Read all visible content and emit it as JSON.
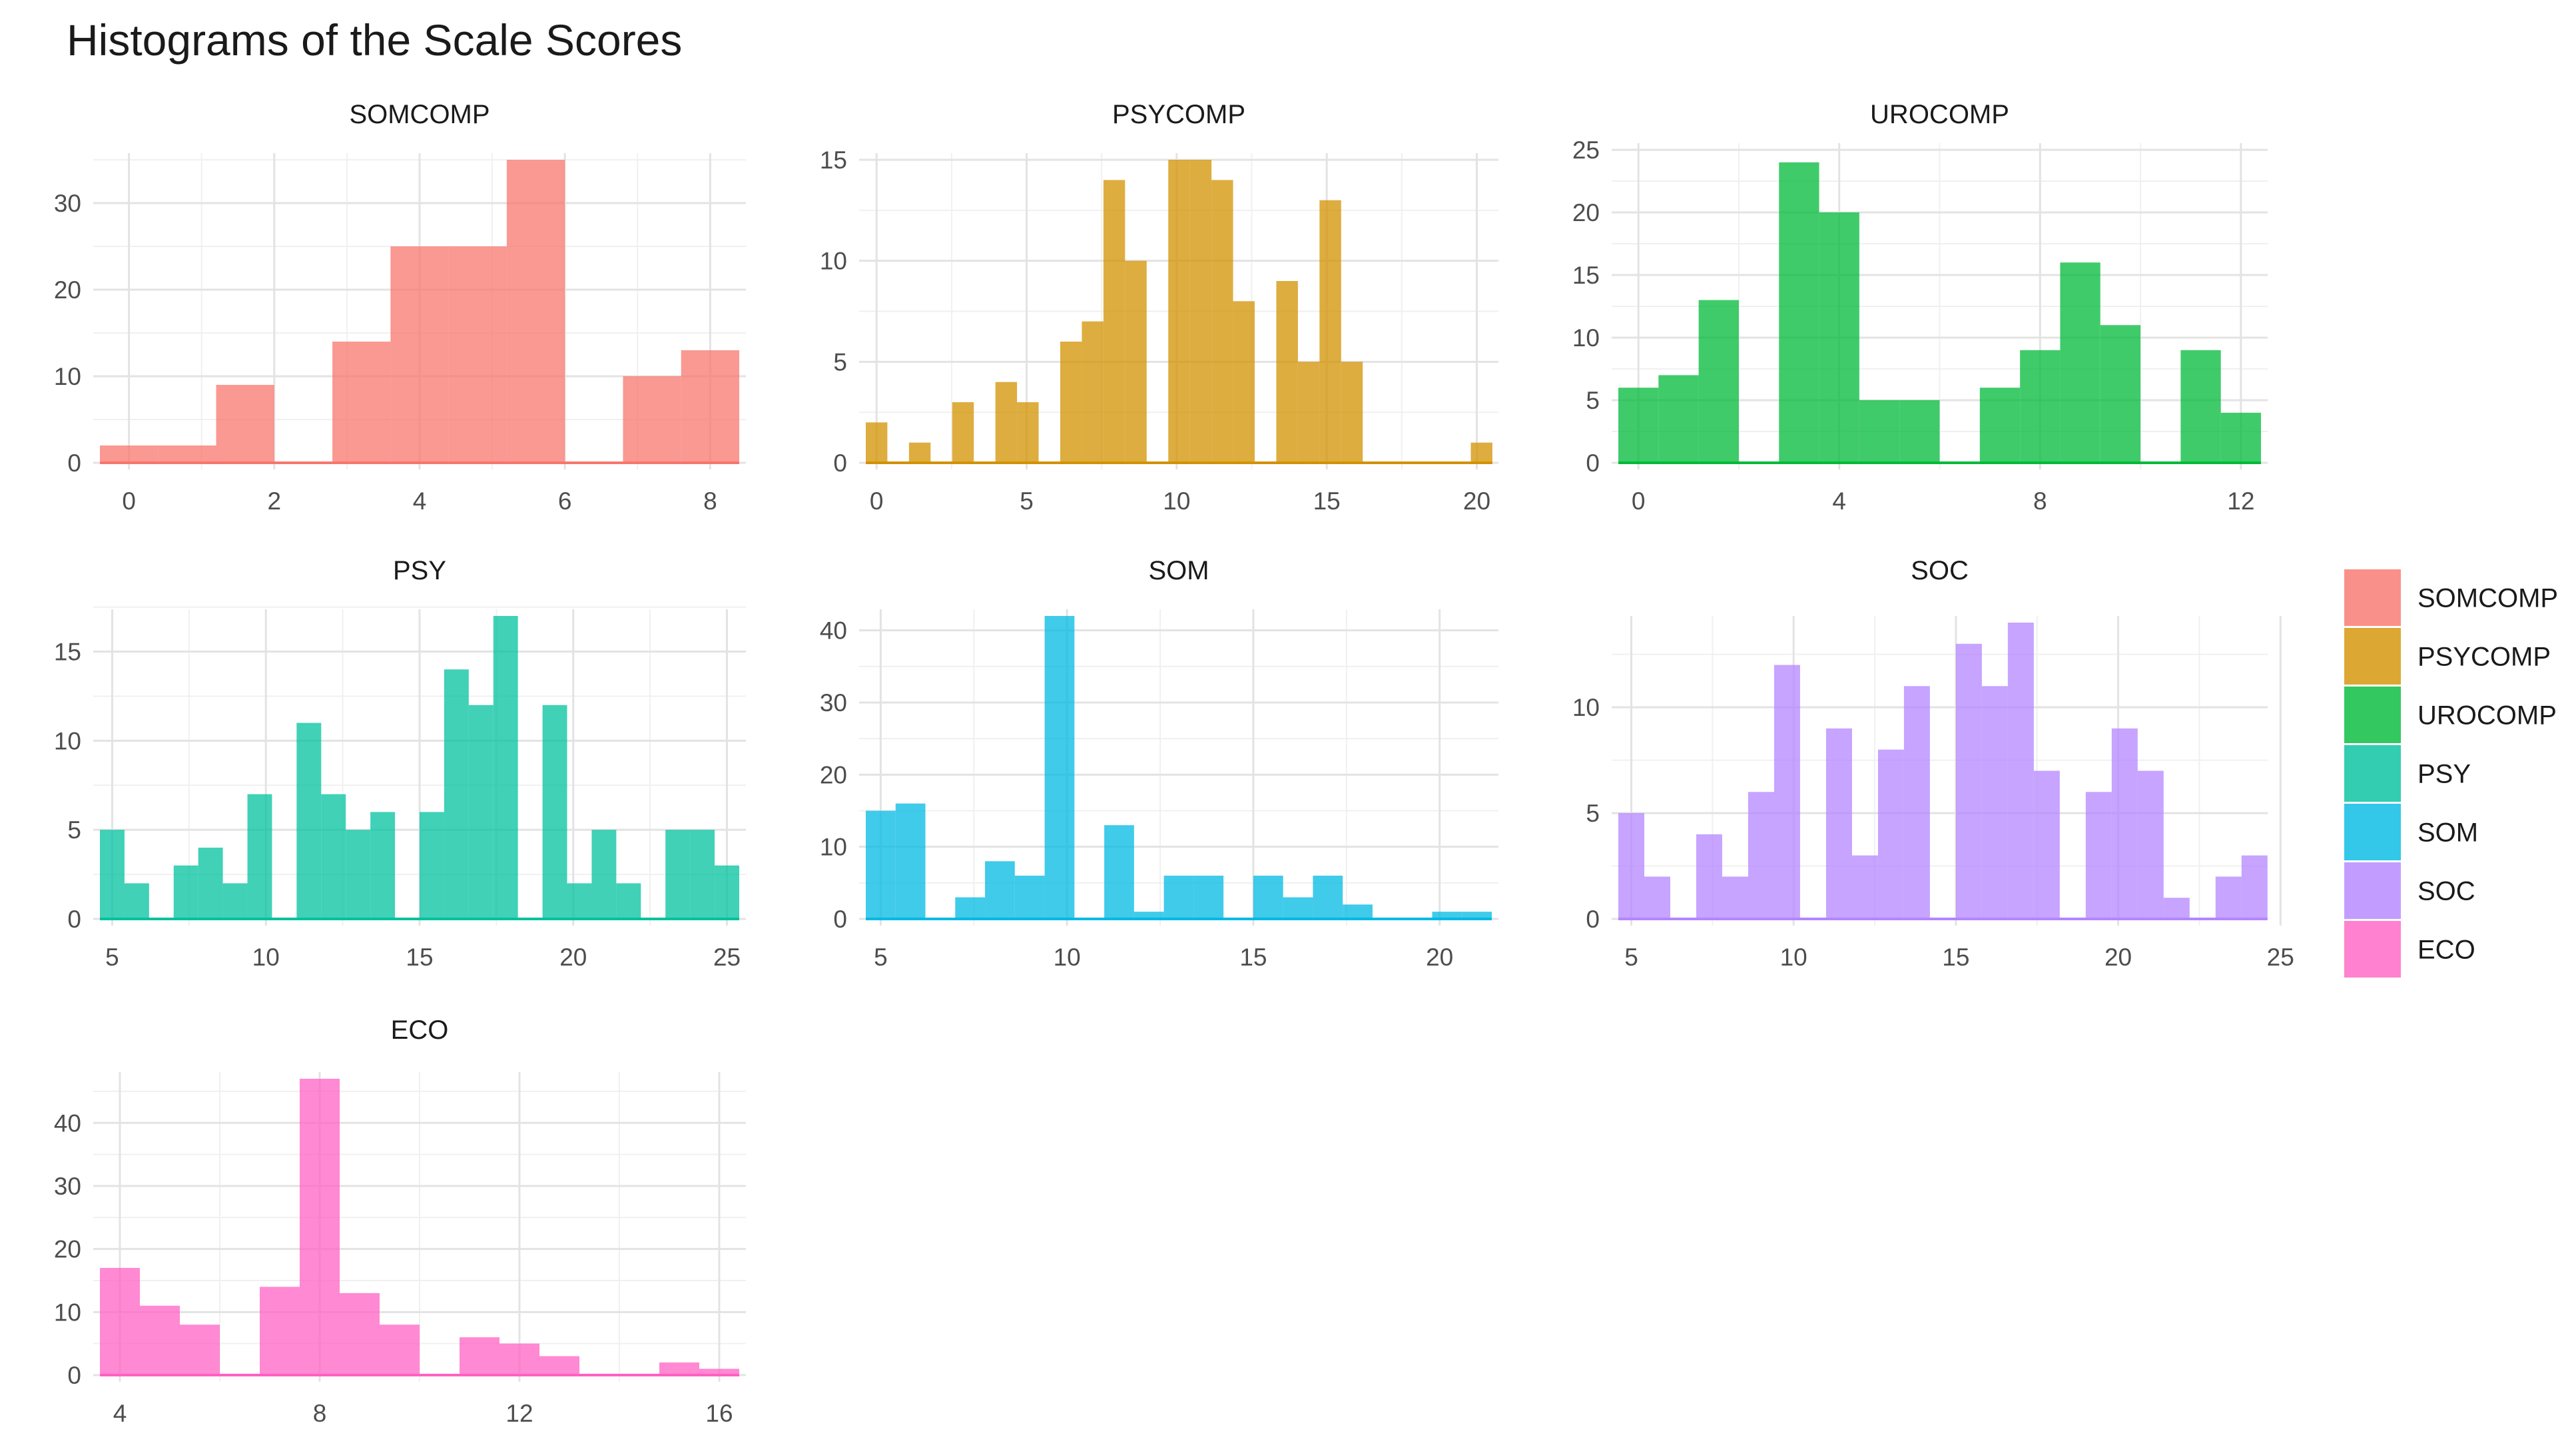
{
  "figure_title": "Histograms of the Scale Scores",
  "legend": [
    {
      "label": "SOMCOMP",
      "color": "#F8766D"
    },
    {
      "label": "PSYCOMP",
      "color": "#D39200"
    },
    {
      "label": "UROCOMP",
      "color": "#00BA38"
    },
    {
      "label": "PSY",
      "color": "#00C19F"
    },
    {
      "label": "SOM",
      "color": "#00B9E3"
    },
    {
      "label": "SOC",
      "color": "#B385FF"
    },
    {
      "label": "ECO",
      "color": "#FF61C3"
    }
  ],
  "chart_data": [
    {
      "type": "bar",
      "title": "SOMCOMP",
      "color": "#F8766D",
      "bin_width": 0.8,
      "xlim": [
        -0.4,
        8.4
      ],
      "ylim": [
        0,
        35
      ],
      "xticks": [
        0,
        2,
        4,
        6,
        8
      ],
      "yticks": [
        0,
        10,
        20,
        30
      ],
      "bin_starts": [
        -0.4,
        0.4,
        1.2,
        2.0,
        2.8,
        3.6,
        4.4,
        5.2,
        6.0,
        6.8,
        7.6
      ],
      "values": [
        2,
        2,
        9,
        0,
        14,
        25,
        25,
        35,
        0,
        10,
        13
      ]
    },
    {
      "type": "bar",
      "title": "PSYCOMP",
      "color": "#D39200",
      "bin_width": 0.72,
      "xlim": [
        -0.36,
        20.5
      ],
      "ylim": [
        0,
        15
      ],
      "xticks": [
        0,
        5,
        10,
        15,
        20
      ],
      "yticks": [
        0,
        5,
        10,
        15
      ],
      "bin_starts": [
        -0.36,
        0.36,
        1.08,
        1.8,
        2.52,
        3.24,
        3.96,
        4.68,
        5.4,
        6.12,
        6.84,
        7.56,
        8.28,
        9.0,
        9.72,
        10.44,
        11.16,
        11.88,
        12.6,
        13.32,
        14.04,
        14.76,
        15.48,
        16.2,
        16.92,
        17.64,
        18.36,
        19.08,
        19.8
      ],
      "values": [
        2,
        0,
        1,
        0,
        3,
        0,
        4,
        3,
        0,
        6,
        7,
        14,
        10,
        0,
        15,
        15,
        14,
        8,
        0,
        9,
        5,
        13,
        5,
        0,
        0,
        0,
        0,
        0,
        1
      ]
    },
    {
      "type": "bar",
      "title": "UROCOMP",
      "color": "#00BA38",
      "bin_width": 0.8,
      "xlim": [
        -0.4,
        12.4
      ],
      "ylim": [
        0,
        25
      ],
      "xticks": [
        0,
        4,
        8,
        12
      ],
      "yticks": [
        0,
        5,
        10,
        15,
        20,
        25
      ],
      "bin_starts": [
        -0.4,
        0.4,
        1.2,
        2.0,
        2.8,
        3.6,
        4.4,
        5.2,
        6.0,
        6.8,
        7.6,
        8.4,
        9.2,
        10.0,
        10.8,
        11.6
      ],
      "values": [
        6,
        7,
        13,
        0,
        24,
        20,
        5,
        5,
        0,
        6,
        9,
        16,
        11,
        0,
        9,
        4
      ]
    },
    {
      "type": "bar",
      "title": "PSY",
      "color": "#00C19F",
      "bin_width": 0.8,
      "xlim": [
        4.6,
        25.4
      ],
      "ylim": [
        0,
        17
      ],
      "xticks": [
        5,
        10,
        15,
        20,
        25
      ],
      "yticks": [
        0,
        5,
        10,
        15
      ],
      "bin_starts": [
        4.6,
        5.4,
        6.2,
        7.0,
        7.8,
        8.6,
        9.4,
        10.2,
        11.0,
        11.8,
        12.6,
        13.4,
        14.2,
        15.0,
        15.8,
        16.6,
        17.4,
        18.2,
        19.0,
        19.8,
        20.6,
        21.4,
        22.2,
        23.0,
        23.8,
        24.6
      ],
      "values": [
        5,
        2,
        0,
        3,
        4,
        2,
        7,
        0,
        11,
        7,
        5,
        6,
        0,
        6,
        14,
        12,
        17,
        0,
        12,
        2,
        5,
        2,
        0,
        5,
        5,
        3
      ]
    },
    {
      "type": "bar",
      "title": "SOM",
      "color": "#00B9E3",
      "bin_width": 0.8,
      "xlim": [
        4.6,
        21.4
      ],
      "ylim": [
        0,
        42
      ],
      "xticks": [
        5,
        10,
        15,
        20
      ],
      "yticks": [
        0,
        10,
        20,
        30,
        40
      ],
      "bin_starts": [
        4.6,
        5.4,
        6.2,
        7.0,
        7.8,
        8.6,
        9.4,
        10.2,
        11.0,
        11.8,
        12.6,
        13.4,
        14.2,
        15.0,
        15.8,
        16.6,
        17.4,
        18.2,
        19.0,
        19.8,
        20.6
      ],
      "values": [
        15,
        16,
        0,
        3,
        8,
        6,
        42,
        0,
        13,
        1,
        6,
        6,
        0,
        6,
        3,
        6,
        2,
        0,
        0,
        1,
        1
      ]
    },
    {
      "type": "bar",
      "title": "SOC",
      "color": "#B385FF",
      "bin_width": 0.8,
      "xlim": [
        4.6,
        24.4
      ],
      "ylim": [
        0,
        14
      ],
      "xticks": [
        5,
        10,
        15,
        20,
        25
      ],
      "yticks": [
        0,
        5,
        10
      ],
      "bin_starts": [
        4.6,
        5.4,
        6.2,
        7.0,
        7.8,
        8.6,
        9.4,
        10.2,
        11.0,
        11.8,
        12.6,
        13.4,
        14.2,
        15.0,
        15.8,
        16.6,
        17.4,
        18.2,
        19.0,
        19.8,
        20.6,
        21.4,
        22.2,
        23.0,
        23.8
      ],
      "values": [
        5,
        2,
        0,
        4,
        2,
        6,
        12,
        0,
        9,
        3,
        8,
        11,
        0,
        13,
        11,
        14,
        7,
        0,
        6,
        9,
        7,
        1,
        0,
        2,
        3
      ]
    },
    {
      "type": "bar",
      "title": "ECO",
      "color": "#FF61C3",
      "bin_width": 0.8,
      "xlim": [
        3.6,
        16.4
      ],
      "ylim": [
        0,
        47
      ],
      "xticks": [
        4,
        8,
        12,
        16
      ],
      "yticks": [
        0,
        10,
        20,
        30,
        40
      ],
      "bin_starts": [
        3.6,
        4.4,
        5.2,
        6.0,
        6.8,
        7.6,
        8.4,
        9.2,
        10.0,
        10.8,
        11.6,
        12.4,
        13.2,
        14.0,
        14.8,
        15.6
      ],
      "values": [
        17,
        11,
        8,
        0,
        14,
        47,
        13,
        8,
        0,
        6,
        5,
        3,
        0,
        0,
        2,
        1
      ]
    }
  ]
}
